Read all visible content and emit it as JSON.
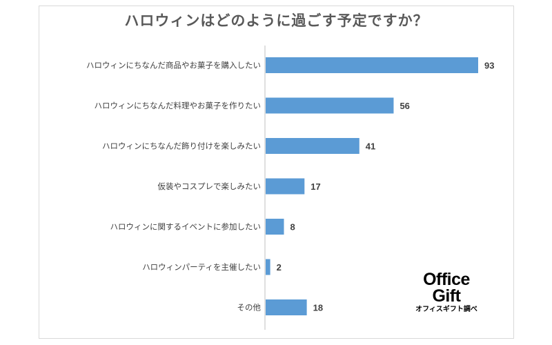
{
  "chart_data": {
    "type": "bar",
    "orientation": "horizontal",
    "title": "ハロウィンはどのように過ごす予定ですか？",
    "categories": [
      "ハロウィンにちなんだ商品やお菓子を購入したい",
      "ハロウィンにちなんだ料理やお菓子を作りたい",
      "ハロウィンにちなんだ飾り付けを楽しみたい",
      "仮装やコスプレで楽しみたい",
      "ハロウィンに関するイベントに参加したい",
      "ハロウィンパーティを主催したい",
      "その他"
    ],
    "values": [
      93,
      56,
      41,
      17,
      8,
      2,
      18
    ],
    "xlim": [
      0,
      93
    ],
    "data_labels": true,
    "grid": false,
    "bar_color": "#5b9bd5"
  },
  "logo": {
    "line1": "Office",
    "line2": "Gift",
    "line3": "オフィスギフト調べ"
  }
}
